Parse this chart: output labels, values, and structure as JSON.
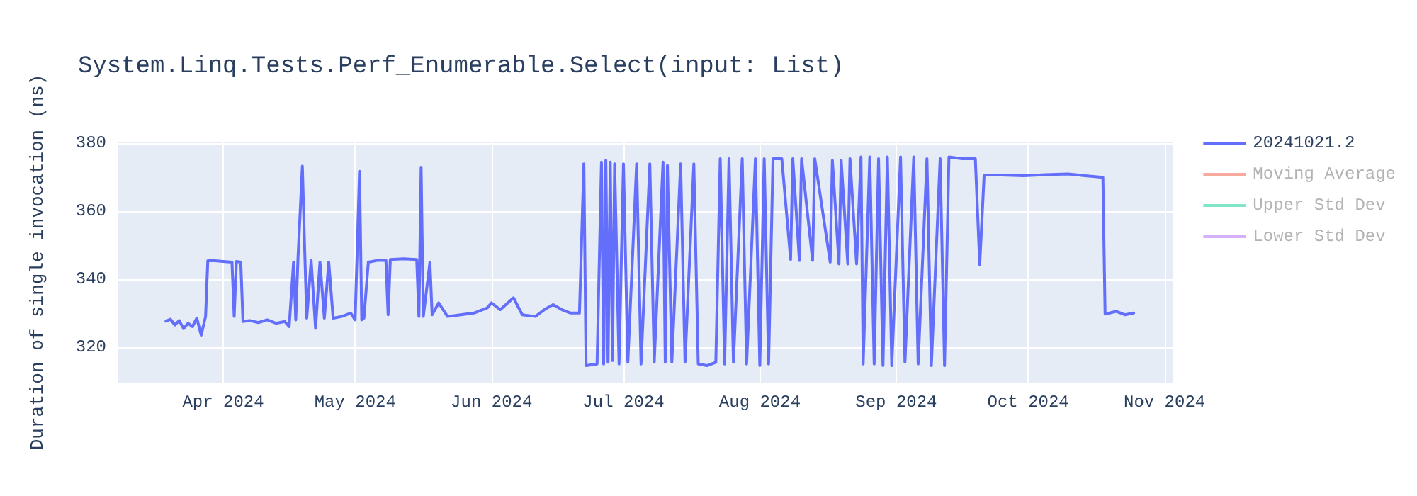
{
  "chart_data": {
    "type": "line",
    "title": "System.Linq.Tests.Perf_Enumerable.Select(input: List)",
    "ylabel": "Duration of single invocation (ns)",
    "xlim": [
      "2024-03-08",
      "2024-11-03"
    ],
    "xticks": [
      {
        "value": "2024-04",
        "label": "Apr 2024"
      },
      {
        "value": "2024-05",
        "label": "May 2024"
      },
      {
        "value": "2024-06",
        "label": "Jun 2024"
      },
      {
        "value": "2024-07",
        "label": "Jul 2024"
      },
      {
        "value": "2024-08",
        "label": "Aug 2024"
      },
      {
        "value": "2024-09",
        "label": "Sep 2024"
      },
      {
        "value": "2024-10",
        "label": "Oct 2024"
      },
      {
        "value": "2024-11",
        "label": "Nov 2024"
      }
    ],
    "ylim": [
      309.5,
      380.5
    ],
    "yticks": [
      320,
      340,
      360,
      380
    ],
    "grid": true,
    "legend": "top right",
    "series": [
      {
        "name": "20241021.2",
        "color": "#636efa",
        "x": [
          "2024-03-19",
          "2024-03-20",
          "2024-03-21",
          "2024-03-22",
          "2024-03-23",
          "2024-03-24",
          "2024-03-25",
          "2024-03-26",
          "2024-03-27",
          "2024-03-28",
          "2024-03-28T12:00",
          "2024-03-30",
          "2024-04-01",
          "2024-04-03",
          "2024-04-03T12:00",
          "2024-04-04",
          "2024-04-05",
          "2024-04-05T12:00",
          "2024-04-07",
          "2024-04-09",
          "2024-04-11",
          "2024-04-13",
          "2024-04-15",
          "2024-04-16",
          "2024-04-17",
          "2024-04-17T12:00",
          "2024-04-18",
          "2024-04-19",
          "2024-04-19T12:00",
          "2024-04-20",
          "2024-04-21",
          "2024-04-22",
          "2024-04-23",
          "2024-04-24",
          "2024-04-25",
          "2024-04-26",
          "2024-04-28",
          "2024-04-30",
          "2024-05-01",
          "2024-05-02",
          "2024-05-02T12:00",
          "2024-05-03",
          "2024-05-04",
          "2024-05-06",
          "2024-05-08",
          "2024-05-08T12:00",
          "2024-05-09",
          "2024-05-12",
          "2024-05-15",
          "2024-05-15T12:00",
          "2024-05-16",
          "2024-05-16T12:00",
          "2024-05-18",
          "2024-05-18T12:00",
          "2024-05-20",
          "2024-05-22",
          "2024-05-25",
          "2024-05-28",
          "2024-05-31",
          "2024-06-01",
          "2024-06-03",
          "2024-06-06",
          "2024-06-08",
          "2024-06-11",
          "2024-06-13",
          "2024-06-15",
          "2024-06-17",
          "2024-06-19",
          "2024-06-21",
          "2024-06-22",
          "2024-06-22T12:00",
          "2024-06-25",
          "2024-06-26",
          "2024-06-26T12:00",
          "2024-06-27",
          "2024-06-27T12:00",
          "2024-06-28",
          "2024-06-28T12:00",
          "2024-06-29",
          "2024-06-30",
          "2024-07-01",
          "2024-07-02",
          "2024-07-04",
          "2024-07-05",
          "2024-07-07",
          "2024-07-08",
          "2024-07-10",
          "2024-07-10T12:00",
          "2024-07-11",
          "2024-07-12",
          "2024-07-14",
          "2024-07-15",
          "2024-07-17",
          "2024-07-18",
          "2024-07-20",
          "2024-07-22",
          "2024-07-23",
          "2024-07-24",
          "2024-07-25",
          "2024-07-26",
          "2024-07-28",
          "2024-07-29",
          "2024-07-31",
          "2024-08-01",
          "2024-08-02",
          "2024-08-03",
          "2024-08-04",
          "2024-08-06",
          "2024-08-08",
          "2024-08-08T12:00",
          "2024-08-10",
          "2024-08-10T12:00",
          "2024-08-13",
          "2024-08-13T12:00",
          "2024-08-17",
          "2024-08-17T12:00",
          "2024-08-19",
          "2024-08-19T12:00",
          "2024-08-21",
          "2024-08-21T12:00",
          "2024-08-23",
          "2024-08-24",
          "2024-08-24T12:00",
          "2024-08-26",
          "2024-08-27",
          "2024-08-28",
          "2024-08-29",
          "2024-08-30",
          "2024-08-31",
          "2024-09-02",
          "2024-09-03",
          "2024-09-05",
          "2024-09-06",
          "2024-09-08",
          "2024-09-09",
          "2024-09-11",
          "2024-09-12",
          "2024-09-13",
          "2024-09-16",
          "2024-09-19",
          "2024-09-20",
          "2024-09-21",
          "2024-09-25",
          "2024-09-30",
          "2024-10-05",
          "2024-10-10",
          "2024-10-14",
          "2024-10-18",
          "2024-10-18T12:00",
          "2024-10-21",
          "2024-10-23",
          "2024-10-25"
        ],
        "values": [
          327.6,
          328.2,
          326.5,
          327.8,
          325.4,
          327,
          326,
          328.5,
          323.5,
          329,
          345.4,
          345.4,
          345.2,
          345,
          329,
          345.2,
          345,
          327.5,
          327.8,
          327.2,
          328,
          327,
          327.5,
          326,
          345,
          328,
          346,
          373.3,
          350,
          328.5,
          345.5,
          325.5,
          345,
          328.5,
          345,
          328.5,
          329,
          330,
          328,
          371.8,
          328,
          328.5,
          345,
          345.5,
          345.5,
          329.5,
          345.8,
          346,
          345.8,
          329,
          373,
          329,
          345,
          329.5,
          333,
          329,
          329.5,
          330,
          331.5,
          333,
          331,
          334.5,
          329.5,
          329,
          331,
          332.5,
          331,
          330,
          330,
          374,
          314.5,
          315,
          374.5,
          315,
          375,
          315.5,
          374.5,
          316,
          374,
          315,
          374,
          315.5,
          374,
          315,
          374,
          315.5,
          374.5,
          315.5,
          373.5,
          315.5,
          374,
          315.5,
          374,
          315,
          314.5,
          315.5,
          375.5,
          315,
          375.5,
          315.5,
          375.5,
          315,
          375.5,
          314.5,
          375.5,
          315,
          375.5,
          375.5,
          345.8,
          375.5,
          345.5,
          375.5,
          345.5,
          375.5,
          345,
          375,
          344.5,
          375,
          344.5,
          375.5,
          344.5,
          376,
          315,
          376,
          315,
          375.5,
          314.5,
          376,
          314.5,
          376,
          315.5,
          376,
          315,
          375.5,
          314.5,
          375.5,
          314.5,
          376,
          375.5,
          375.5,
          344.3,
          370.7,
          370.7,
          370.5,
          370.8,
          371,
          370.5,
          370,
          329.7,
          330.5,
          329.5,
          330
        ]
      },
      {
        "name": "Moving Average",
        "color": "#f7aa9d"
      },
      {
        "name": "Upper Std Dev",
        "color": "#80e5ca"
      },
      {
        "name": "Lower Std Dev",
        "color": "#d5b1fc"
      }
    ]
  }
}
